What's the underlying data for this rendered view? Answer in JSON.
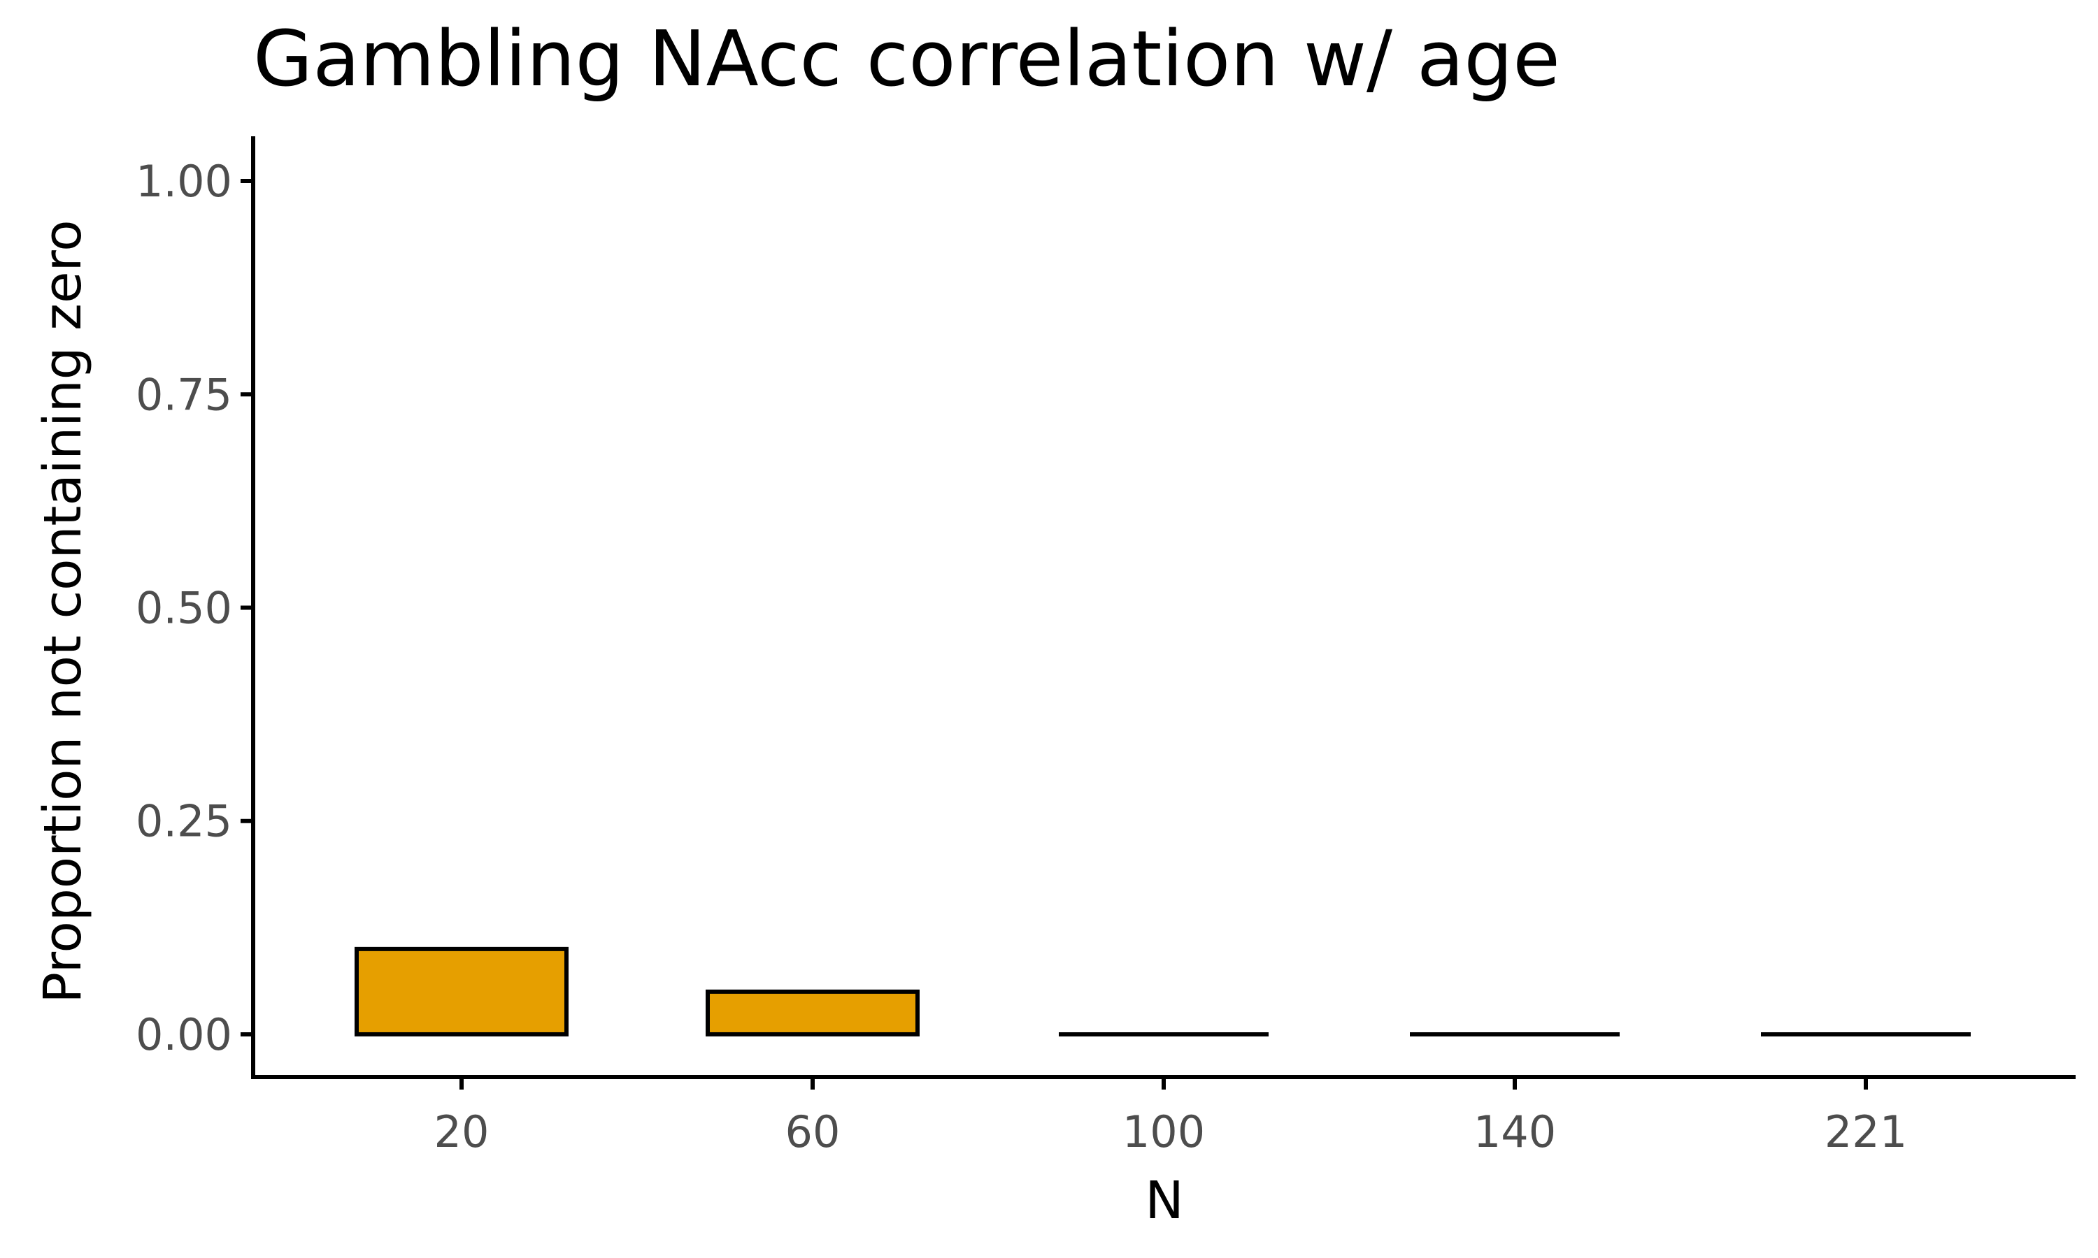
{
  "chart_data": {
    "type": "bar",
    "title": "Gambling NAcc correlation w/ age",
    "xlabel": "N",
    "ylabel": "Proportion not containing zero",
    "categories": [
      "20",
      "60",
      "100",
      "140",
      "221"
    ],
    "values": [
      0.1,
      0.05,
      0.0,
      0.0,
      0.0
    ],
    "yticks": [
      "0.00",
      "0.25",
      "0.50",
      "0.75",
      "1.00"
    ],
    "ylim": [
      -0.05,
      1.05
    ],
    "grid": false,
    "legend": "none",
    "colors": {
      "bar_fill": "#E69F00",
      "bar_stroke": "#000000",
      "axis": "#000000",
      "tick_label": "#4d4d4d"
    }
  }
}
